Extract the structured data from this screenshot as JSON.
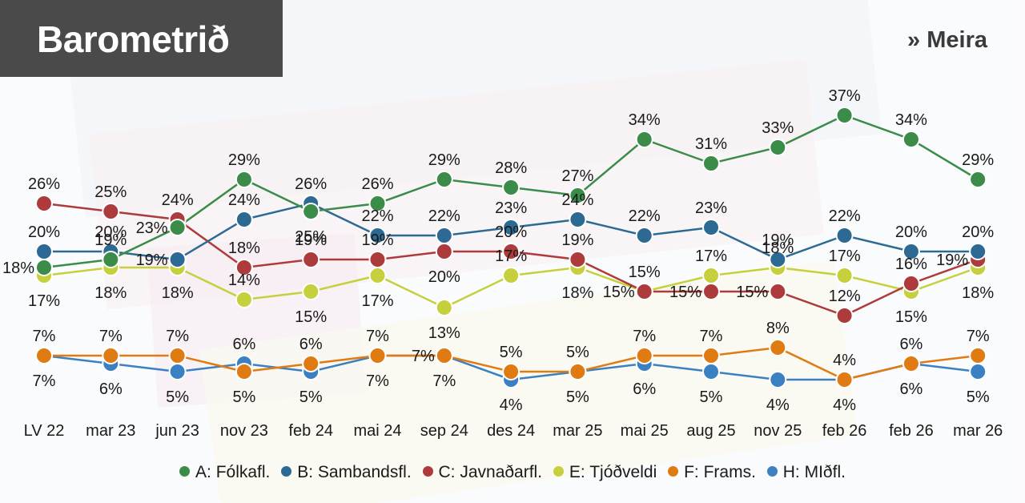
{
  "header": {
    "title": "Barometrið",
    "more_link": "» Meira"
  },
  "chart_data": {
    "type": "line",
    "title": "Barometrið",
    "xlabel": "",
    "ylabel": "",
    "ylim": [
      0,
      40
    ],
    "grid": false,
    "legend_position": "bottom",
    "categories": [
      "LV 22",
      "mar 23",
      "jun 23",
      "nov 23",
      "feb 24",
      "mai 24",
      "sep 24",
      "des 24",
      "mar 25",
      "mai 25",
      "aug 25",
      "nov 25",
      "feb 26",
      "feb 26",
      "mar 26"
    ],
    "series": [
      {
        "name": "A: Fólkafl.",
        "color": "#3b8b49",
        "values": [
          18,
          19,
          23,
          29,
          25,
          26,
          29,
          28,
          27,
          34,
          31,
          33,
          37,
          34,
          29
        ],
        "label_side": [
          "left",
          "above",
          "left",
          "above",
          "below",
          "above",
          "above",
          "above",
          "above",
          "above",
          "above",
          "above",
          "above",
          "above",
          "above"
        ]
      },
      {
        "name": "B: Sambandsfl.",
        "color": "#2d6a93",
        "values": [
          20,
          20,
          19,
          24,
          26,
          22,
          22,
          23,
          24,
          22,
          23,
          19,
          22,
          20,
          20
        ],
        "label_side": [
          "above",
          "above",
          "left",
          "above",
          "above",
          "above",
          "above",
          "above",
          "above",
          "above",
          "above",
          "above",
          "above",
          "above",
          "above"
        ]
      },
      {
        "name": "C: Javnaðarfl.",
        "color": "#ae3b3b",
        "values": [
          26,
          25,
          24,
          18,
          19,
          19,
          20,
          20,
          19,
          15,
          15,
          15,
          12,
          16,
          19
        ],
        "label_side": [
          "above",
          "above",
          "above",
          "above",
          "above",
          "above",
          "below",
          "above",
          "above",
          "left",
          "left",
          "left",
          "above",
          "above",
          "left"
        ]
      },
      {
        "name": "E: Tjóðveldi",
        "color": "#c6d03c",
        "values": [
          17,
          18,
          18,
          14,
          15,
          17,
          13,
          17,
          18,
          15,
          17,
          18,
          17,
          15,
          18
        ],
        "label_side": [
          "below",
          "below",
          "below",
          "above",
          "below",
          "below",
          "below",
          "above",
          "below",
          "above",
          "above",
          "above",
          "above",
          "below",
          "below"
        ]
      },
      {
        "name": "F: Frams.",
        "color": "#e07a12",
        "values": [
          7,
          7,
          7,
          5,
          6,
          7,
          7,
          5,
          5,
          7,
          7,
          8,
          4,
          6,
          7
        ],
        "label_side": [
          "above",
          "above",
          "above",
          "below",
          "above",
          "above",
          "left",
          "above",
          "above",
          "above",
          "above",
          "above",
          "above",
          "above",
          "above"
        ]
      },
      {
        "name": "H: MIðfl.",
        "color": "#3a80c3",
        "values": [
          7,
          6,
          5,
          6,
          5,
          7,
          7,
          4,
          5,
          6,
          5,
          4,
          4,
          6,
          5
        ],
        "label_side": [
          "below",
          "below",
          "below",
          "above",
          "below",
          "below",
          "below",
          "below",
          "below",
          "below",
          "below",
          "below",
          "below",
          "below",
          "below"
        ]
      }
    ]
  },
  "legend": [
    {
      "label": "A: Fólkafl.",
      "color": "#3b8b49"
    },
    {
      "label": "B: Sambandsfl.",
      "color": "#2d6a93"
    },
    {
      "label": "C: Javnaðarfl.",
      "color": "#ae3b3b"
    },
    {
      "label": "E: Tjóðveldi",
      "color": "#c6d03c"
    },
    {
      "label": "F: Frams.",
      "color": "#e07a12"
    },
    {
      "label": "H: MIðfl.",
      "color": "#3a80c3"
    }
  ]
}
